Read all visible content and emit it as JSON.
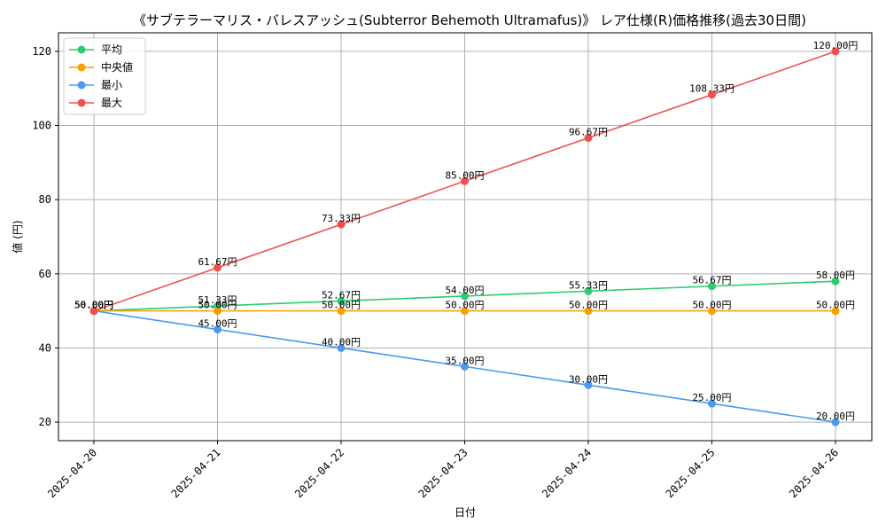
{
  "chart_data": {
    "type": "line",
    "title": "《サブテラーマリス・バレスアッシュ(Subterror Behemoth Ultramafus)》 レア仕様(R)価格推移(過去30日間)",
    "xlabel": "日付",
    "ylabel": "値 (円)",
    "x": [
      "2025-04-20",
      "2025-04-21",
      "2025-04-22",
      "2025-04-23",
      "2025-04-24",
      "2025-04-25",
      "2025-04-26"
    ],
    "ylim": [
      15,
      125
    ],
    "yticks": [
      20,
      40,
      60,
      80,
      100,
      120
    ],
    "grid": true,
    "legend_position": "top-left",
    "value_suffix": "円",
    "series": [
      {
        "name": "平均",
        "color": "#2ecc71",
        "values": [
          50.0,
          51.33,
          52.67,
          54.0,
          55.33,
          56.67,
          58.0
        ]
      },
      {
        "name": "中央値",
        "color": "#f5a000",
        "values": [
          50.0,
          50.0,
          50.0,
          50.0,
          50.0,
          50.0,
          50.0
        ]
      },
      {
        "name": "最小",
        "color": "#4a9af0",
        "values": [
          50.0,
          45.0,
          40.0,
          35.0,
          30.0,
          25.0,
          20.0
        ]
      },
      {
        "name": "最大",
        "color": "#f05050",
        "values": [
          50.0,
          61.67,
          73.33,
          85.0,
          96.67,
          108.33,
          120.0
        ]
      }
    ]
  }
}
